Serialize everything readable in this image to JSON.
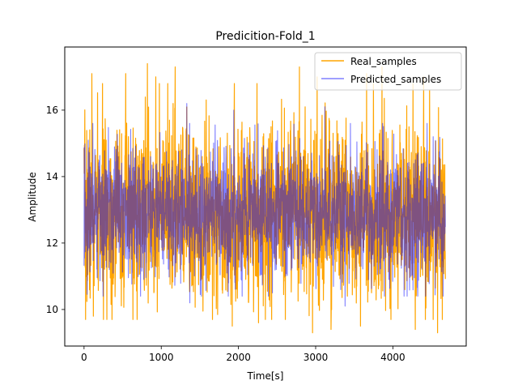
{
  "chart_data": {
    "type": "line",
    "title": "Predicition-Fold_1",
    "xlabel": "Time[s]",
    "ylabel": "Amplitude",
    "xlim": [
      -250,
      4950
    ],
    "ylim": [
      8.9,
      17.9
    ],
    "xticks": [
      0,
      1000,
      2000,
      3000,
      4000
    ],
    "yticks": [
      10,
      12,
      14,
      16
    ],
    "grid": false,
    "legend_position": "top-right",
    "x_range": [
      0,
      4680
    ],
    "series": [
      {
        "name": "Real_samples",
        "color": "#ffa500",
        "opacity": 1.0,
        "mean": 12.9,
        "envelope": [
          9.3,
          17.4
        ],
        "peaks": [
          {
            "x": 100,
            "y": 17.1
          },
          {
            "x": 540,
            "y": 17.1
          },
          {
            "x": 820,
            "y": 17.4
          },
          {
            "x": 930,
            "y": 17.0
          },
          {
            "x": 1180,
            "y": 17.3
          },
          {
            "x": 2240,
            "y": 16.8
          },
          {
            "x": 2790,
            "y": 17.3
          },
          {
            "x": 3020,
            "y": 17.0
          },
          {
            "x": 3660,
            "y": 17.1
          },
          {
            "x": 3860,
            "y": 17.3
          },
          {
            "x": 4260,
            "y": 16.8
          },
          {
            "x": 4400,
            "y": 17.0
          }
        ],
        "troughs": [
          {
            "x": 20,
            "y": 9.7
          },
          {
            "x": 120,
            "y": 9.8
          },
          {
            "x": 1920,
            "y": 9.5
          },
          {
            "x": 2260,
            "y": 9.6
          },
          {
            "x": 2960,
            "y": 9.3
          },
          {
            "x": 3200,
            "y": 9.4
          },
          {
            "x": 3580,
            "y": 9.5
          },
          {
            "x": 4290,
            "y": 9.4
          },
          {
            "x": 4580,
            "y": 9.3
          }
        ]
      },
      {
        "name": "Predicted_samples",
        "color": "#0000ff",
        "opacity": 0.5,
        "mean": 12.9,
        "envelope": [
          10.0,
          16.2
        ],
        "peaks": [
          {
            "x": 1330,
            "y": 16.2
          },
          {
            "x": 1940,
            "y": 16.0
          },
          {
            "x": 3120,
            "y": 16.1
          }
        ],
        "troughs": [
          {
            "x": 1370,
            "y": 10.2
          },
          {
            "x": 2440,
            "y": 10.5
          },
          {
            "x": 3380,
            "y": 10.1
          }
        ]
      }
    ]
  }
}
